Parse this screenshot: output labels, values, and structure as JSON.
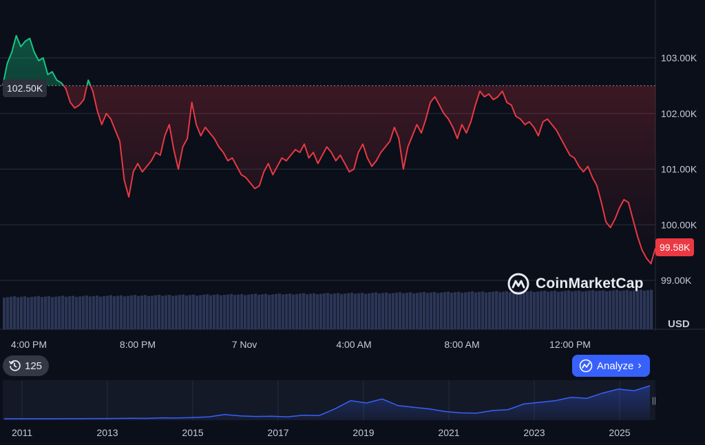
{
  "chart_data": {
    "type": "line",
    "currency_label": "USD",
    "reference_price_label": "102.50K",
    "last_price_label": "99.58K",
    "y_ticks": [
      "103.00K",
      "102.00K",
      "101.00K",
      "100.00K",
      "99.00K"
    ],
    "y_tick_values": [
      103000,
      102000,
      101000,
      100000,
      99000
    ],
    "ylim": [
      98800,
      104000
    ],
    "reference_value": 102500,
    "x_ticks": [
      "4:00 PM",
      "8:00 PM",
      "7 Nov",
      "4:00 AM",
      "8:00 AM",
      "12:00 PM"
    ],
    "colors": {
      "up": "#16c784",
      "down": "#ea3943",
      "background": "#0b0f1a",
      "grid": "#2a2f3b",
      "accent": "#3861fb"
    },
    "series": [
      {
        "values": [
          102500,
          102900,
          103100,
          103400,
          103200,
          103300,
          103350,
          103100,
          102950,
          103000,
          102700,
          102750,
          102600,
          102550,
          102450,
          102200,
          102100,
          102150,
          102250,
          102600,
          102400,
          102050,
          101800,
          102000,
          101900,
          101700,
          101500,
          100800,
          100500,
          100950,
          101100,
          100950,
          101050,
          101150,
          101300,
          101250,
          101600,
          101800,
          101350,
          101000,
          101400,
          101550,
          102200,
          101800,
          101600,
          101750,
          101650,
          101550,
          101400,
          101300,
          101150,
          101200,
          101050,
          100900,
          100850,
          100750,
          100650,
          100700,
          100950,
          101100,
          100900,
          101050,
          101200,
          101150,
          101250,
          101350,
          101300,
          101450,
          101200,
          101300,
          101100,
          101250,
          101400,
          101300,
          101150,
          101250,
          101100,
          100950,
          101000,
          101300,
          101450,
          101200,
          101050,
          101150,
          101300,
          101400,
          101500,
          101750,
          101550,
          101000,
          101400,
          101600,
          101800,
          101650,
          101900,
          102200,
          102300,
          102150,
          102000,
          101900,
          101750,
          101550,
          101800,
          101650,
          101850,
          102150,
          102400,
          102300,
          102350,
          102250,
          102300,
          102400,
          102200,
          102150,
          101950,
          101900,
          101800,
          101850,
          101750,
          101600,
          101850,
          101900,
          101800,
          101700,
          101550,
          101400,
          101250,
          101200,
          101050,
          100950,
          101050,
          100850,
          100700,
          100400,
          100050,
          99950,
          100100,
          100300,
          100450,
          100400,
          100100,
          99800,
          99550,
          99400,
          99300,
          99580
        ]
      }
    ]
  },
  "navigator": {
    "year_labels": [
      "2011",
      "2013",
      "2015",
      "2017",
      "2019",
      "2021",
      "2023",
      "2025"
    ],
    "values": [
      0.2,
      0.2,
      0.3,
      0.3,
      0.4,
      0.6,
      0.8,
      1,
      1.5,
      1.2,
      3,
      2.5,
      4,
      6,
      13,
      9,
      7,
      8,
      6,
      11,
      10,
      30,
      55,
      48,
      60,
      40,
      35,
      30,
      22,
      18,
      17,
      25,
      28,
      45,
      50,
      55,
      65,
      62,
      78,
      90,
      85,
      100
    ]
  },
  "controls": {
    "history_count": "125",
    "analyze_label": "Analyze",
    "watermark": "CoinMarketCap"
  }
}
